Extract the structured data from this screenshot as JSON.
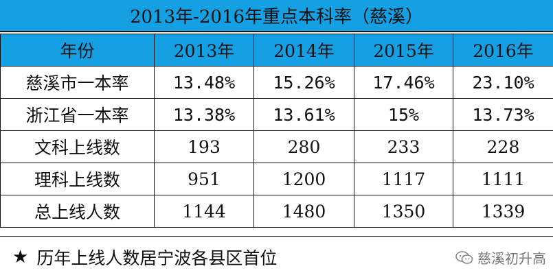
{
  "title": "2013年-2016年重点本科率（慈溪）",
  "header": [
    "年份",
    "2013年",
    "2014年",
    "2015年",
    "2016年"
  ],
  "rows": [
    {
      "label": "慈溪市一本率",
      "values": [
        "13.48%",
        "15.26%",
        "17.46%",
        "23.10%"
      ]
    },
    {
      "label": "浙江省一本率",
      "values": [
        "13.38%",
        "13.61%",
        "15%",
        "13.73%"
      ]
    },
    {
      "label": "文科上线数",
      "values": [
        "193",
        "280",
        "233",
        "228"
      ]
    },
    {
      "label": "理科上线数",
      "values": [
        "951",
        "1200",
        "1117",
        "1111"
      ]
    },
    {
      "label": "总上线人数",
      "values": [
        "1144",
        "1480",
        "1350",
        "1339"
      ]
    }
  ],
  "footer": {
    "star": "★",
    "note": "历年上线人数居宁波各县区首位",
    "brand": "慈溪初升高",
    "brand_icon": "wechat-icon"
  },
  "colors": {
    "header_bg": "#14a0e2",
    "text": "#111111",
    "brand": "#777777"
  }
}
